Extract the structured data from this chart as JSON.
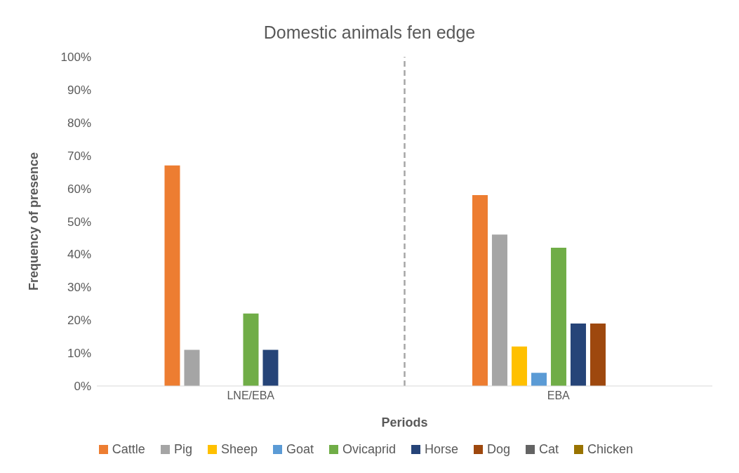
{
  "chart_data": {
    "type": "bar",
    "title": "Domestic animals fen edge",
    "xlabel": "Periods",
    "ylabel": "Frequency of presence",
    "categories": [
      "LNE/EBA",
      "EBA"
    ],
    "series": [
      {
        "name": "Cattle",
        "color": "#ed7d31",
        "values": [
          67,
          58
        ]
      },
      {
        "name": "Pig",
        "color": "#a5a5a5",
        "values": [
          11,
          46
        ]
      },
      {
        "name": "Sheep",
        "color": "#ffc000",
        "values": [
          0,
          12
        ]
      },
      {
        "name": "Goat",
        "color": "#5b9bd5",
        "values": [
          0,
          4
        ]
      },
      {
        "name": "Ovicaprid",
        "color": "#70ad47",
        "values": [
          22,
          42
        ]
      },
      {
        "name": "Horse",
        "color": "#264478",
        "values": [
          11,
          19
        ]
      },
      {
        "name": "Dog",
        "color": "#9e480e",
        "values": [
          0,
          19
        ]
      },
      {
        "name": "Cat",
        "color": "#636363",
        "values": [
          0,
          0
        ]
      },
      {
        "name": "Chicken",
        "color": "#997300",
        "values": [
          0,
          0
        ]
      }
    ],
    "ylim": [
      0,
      100
    ],
    "yticks": [
      {
        "value": 0,
        "label": "0%"
      },
      {
        "value": 10,
        "label": "10%"
      },
      {
        "value": 20,
        "label": "20%"
      },
      {
        "value": 30,
        "label": "30%"
      },
      {
        "value": 40,
        "label": "40%"
      },
      {
        "value": 50,
        "label": "50%"
      },
      {
        "value": 60,
        "label": "60%"
      },
      {
        "value": 70,
        "label": "70%"
      },
      {
        "value": 80,
        "label": "80%"
      },
      {
        "value": 90,
        "label": "90%"
      },
      {
        "value": 100,
        "label": "100%"
      }
    ],
    "grid": false,
    "legend": "bottom"
  }
}
